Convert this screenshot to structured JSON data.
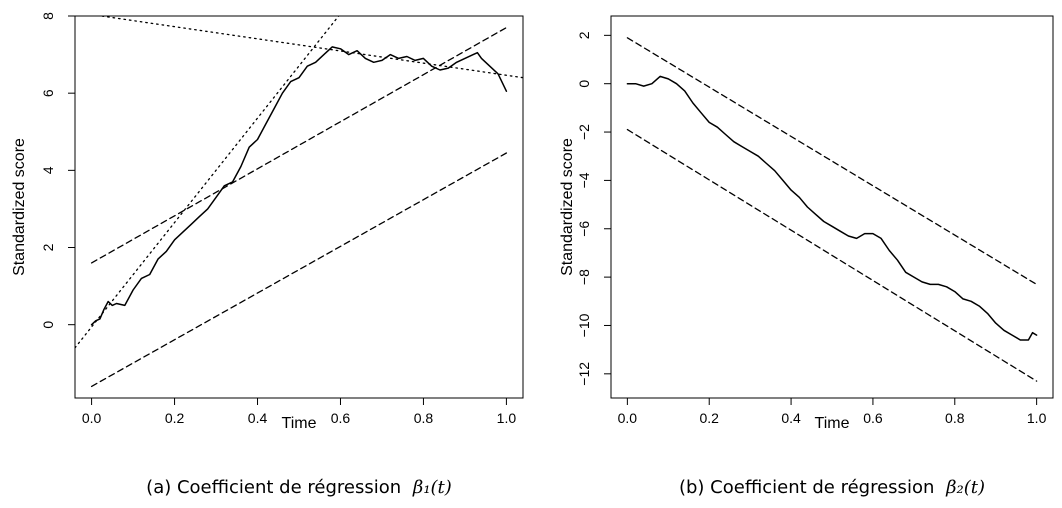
{
  "chart_data": [
    {
      "type": "line",
      "caption_text": "(a) Coefficient de régression",
      "caption_math": "β₁(t)",
      "xlabel": "Time",
      "ylabel": "Standardized score",
      "xlim": [
        -0.04,
        1.04
      ],
      "ylim": [
        -1.9,
        8.0
      ],
      "x_ticks": [
        0.0,
        0.2,
        0.4,
        0.6,
        0.8,
        1.0
      ],
      "x_tick_labels": [
        "0.0",
        "0.2",
        "0.4",
        "0.6",
        "0.8",
        "1.0"
      ],
      "y_ticks": [
        0,
        2,
        4,
        6,
        8
      ],
      "y_tick_labels": [
        "0",
        "2",
        "4",
        "6",
        "8"
      ],
      "grid": false,
      "series": [
        {
          "style": "solid",
          "x": [
            0.0,
            0.01,
            0.02,
            0.03,
            0.04,
            0.05,
            0.06,
            0.08,
            0.1,
            0.12,
            0.14,
            0.16,
            0.18,
            0.2,
            0.22,
            0.24,
            0.26,
            0.28,
            0.3,
            0.32,
            0.34,
            0.36,
            0.38,
            0.4,
            0.42,
            0.44,
            0.46,
            0.48,
            0.5,
            0.52,
            0.54,
            0.56,
            0.58,
            0.6,
            0.62,
            0.64,
            0.66,
            0.68,
            0.7,
            0.72,
            0.74,
            0.76,
            0.78,
            0.8,
            0.82,
            0.84,
            0.86,
            0.88,
            0.9,
            0.92,
            0.93,
            0.94,
            0.96,
            0.98,
            1.0
          ],
          "y": [
            0.0,
            0.1,
            0.15,
            0.4,
            0.6,
            0.5,
            0.55,
            0.5,
            0.9,
            1.2,
            1.3,
            1.7,
            1.9,
            2.2,
            2.4,
            2.6,
            2.8,
            3.0,
            3.3,
            3.6,
            3.7,
            4.1,
            4.6,
            4.8,
            5.2,
            5.6,
            6.0,
            6.3,
            6.4,
            6.7,
            6.8,
            7.0,
            7.2,
            7.15,
            7.0,
            7.1,
            6.9,
            6.8,
            6.85,
            7.0,
            6.9,
            6.95,
            6.85,
            6.9,
            6.7,
            6.6,
            6.65,
            6.8,
            6.9,
            7.0,
            7.05,
            6.9,
            6.7,
            6.5,
            6.05
          ]
        },
        {
          "style": "dashed",
          "x": [
            0.0,
            1.0
          ],
          "y": [
            1.6,
            7.7
          ]
        },
        {
          "style": "dashed",
          "x": [
            0.0,
            1.0
          ],
          "y": [
            -1.6,
            4.45
          ]
        },
        {
          "style": "dotted",
          "x": [
            -0.04,
            0.64
          ],
          "y": [
            -0.6,
            8.6
          ]
        },
        {
          "style": "dotted",
          "x": [
            -0.04,
            1.04
          ],
          "y": [
            8.1,
            6.4
          ]
        }
      ]
    },
    {
      "type": "line",
      "caption_text": "(b) Coefficient de régression",
      "caption_math": "β₂(t)",
      "xlabel": "Time",
      "ylabel": "Standardized score",
      "xlim": [
        -0.04,
        1.04
      ],
      "ylim": [
        -13.0,
        2.8
      ],
      "x_ticks": [
        0.0,
        0.2,
        0.4,
        0.6,
        0.8,
        1.0
      ],
      "x_tick_labels": [
        "0.0",
        "0.2",
        "0.4",
        "0.6",
        "0.8",
        "1.0"
      ],
      "y_ticks": [
        2,
        0,
        -2,
        -4,
        -6,
        -8,
        -10,
        -12
      ],
      "y_tick_labels": [
        "2",
        "0",
        "−2",
        "−4",
        "−6",
        "−8",
        "−10",
        "−12"
      ],
      "grid": false,
      "series": [
        {
          "style": "solid",
          "x": [
            0.0,
            0.02,
            0.04,
            0.06,
            0.08,
            0.1,
            0.12,
            0.14,
            0.16,
            0.18,
            0.2,
            0.22,
            0.24,
            0.26,
            0.28,
            0.3,
            0.32,
            0.34,
            0.36,
            0.38,
            0.4,
            0.42,
            0.44,
            0.46,
            0.48,
            0.5,
            0.52,
            0.54,
            0.56,
            0.58,
            0.6,
            0.62,
            0.64,
            0.66,
            0.68,
            0.7,
            0.72,
            0.74,
            0.76,
            0.78,
            0.8,
            0.82,
            0.84,
            0.86,
            0.88,
            0.9,
            0.92,
            0.94,
            0.96,
            0.98,
            0.99,
            1.0
          ],
          "y": [
            0.0,
            0.0,
            -0.1,
            0.0,
            0.3,
            0.2,
            0.0,
            -0.3,
            -0.8,
            -1.2,
            -1.6,
            -1.8,
            -2.1,
            -2.4,
            -2.6,
            -2.8,
            -3.0,
            -3.3,
            -3.6,
            -4.0,
            -4.4,
            -4.7,
            -5.1,
            -5.4,
            -5.7,
            -5.9,
            -6.1,
            -6.3,
            -6.4,
            -6.2,
            -6.2,
            -6.4,
            -6.9,
            -7.3,
            -7.8,
            -8.0,
            -8.2,
            -8.3,
            -8.3,
            -8.4,
            -8.6,
            -8.9,
            -9.0,
            -9.2,
            -9.5,
            -9.9,
            -10.2,
            -10.4,
            -10.6,
            -10.6,
            -10.3,
            -10.4
          ]
        },
        {
          "style": "dashed",
          "x": [
            0.0,
            1.0
          ],
          "y": [
            1.9,
            -8.3
          ]
        },
        {
          "style": "dashed",
          "x": [
            0.0,
            1.0
          ],
          "y": [
            -1.9,
            -12.3
          ]
        }
      ]
    }
  ]
}
